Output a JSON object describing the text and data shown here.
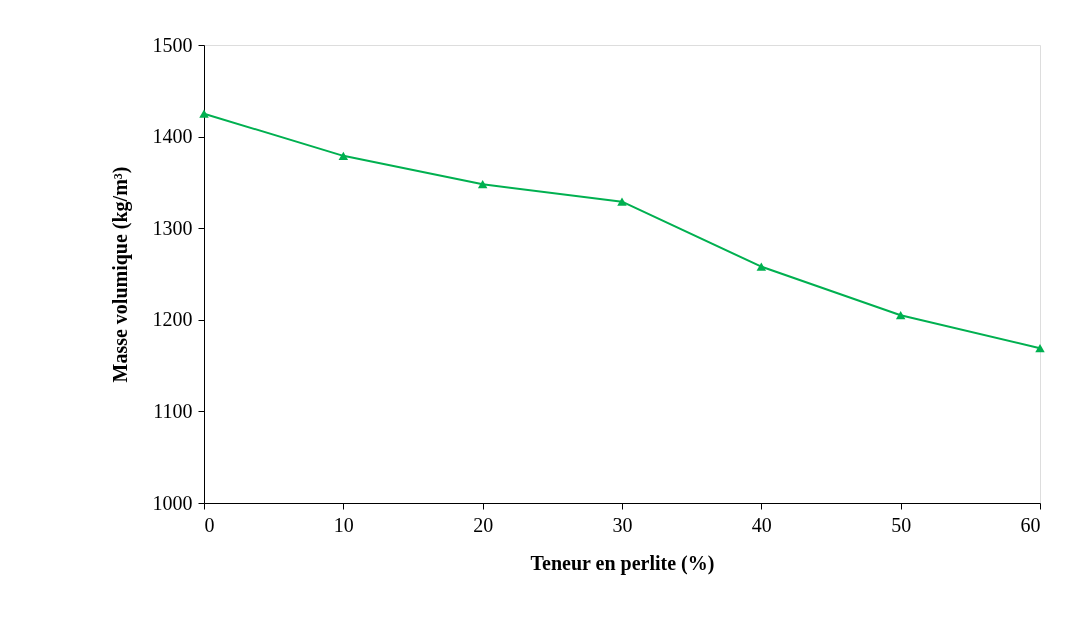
{
  "chart_data": {
    "type": "line",
    "xlabel": "Teneur en perlite (%)",
    "ylabel": "Masse volumique (kg/m³)",
    "x": [
      0,
      10,
      20,
      30,
      40,
      50,
      60
    ],
    "series": [
      {
        "color": "#00b050",
        "values": [
          1425,
          1379,
          1348,
          1329,
          1258,
          1205,
          1169
        ]
      }
    ],
    "xlim": [
      0,
      60
    ],
    "xticks": [
      0,
      10,
      20,
      30,
      40,
      50,
      60
    ],
    "ylim": [
      1000,
      1500
    ],
    "yticks": [
      1000,
      1100,
      1200,
      1300,
      1400,
      1500
    ],
    "grid": false,
    "marker": "triangle",
    "line_style": "solid"
  }
}
